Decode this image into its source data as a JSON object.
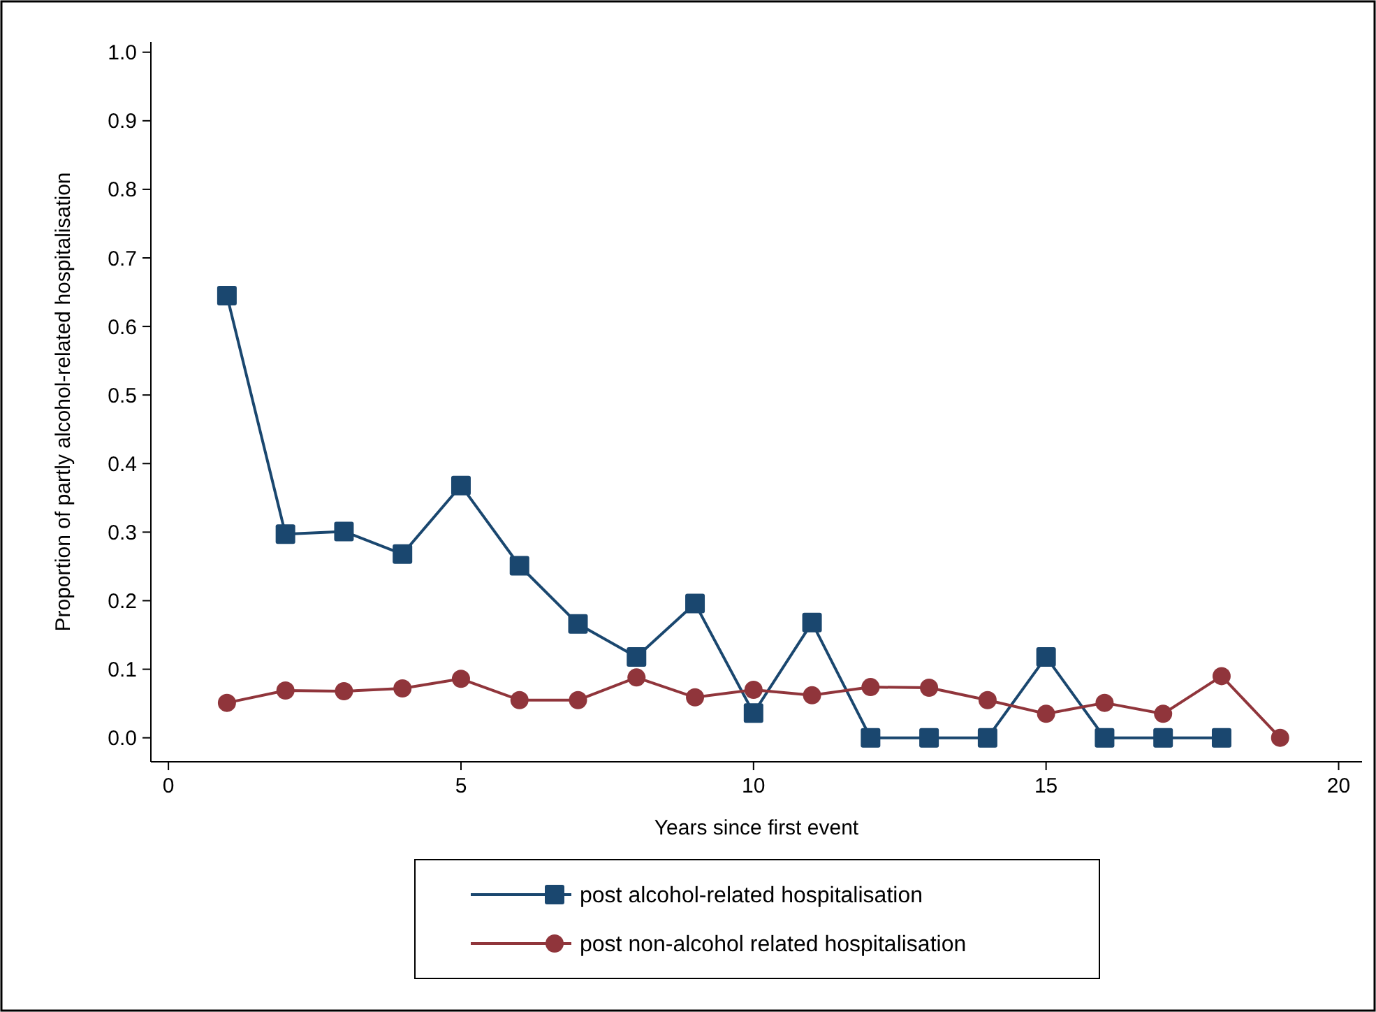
{
  "chart_data": {
    "type": "line",
    "xlabel": "Years since first event",
    "ylabel": "Proportion of partly alcohol-related hospitalisation",
    "x": [
      1,
      2,
      3,
      4,
      5,
      6,
      7,
      8,
      9,
      10,
      11,
      12,
      13,
      14,
      15,
      16,
      17,
      18,
      19
    ],
    "series": [
      {
        "name": "post alcohol-related hospitalisation",
        "color": "#1a476f",
        "marker": "square",
        "values": [
          0.645,
          0.297,
          0.301,
          0.268,
          0.368,
          0.251,
          0.166,
          0.118,
          0.196,
          0.036,
          0.168,
          0,
          0,
          0,
          0.118,
          0,
          0,
          0,
          null
        ]
      },
      {
        "name": "post non-alcohol related hospitalisation",
        "color": "#90353b",
        "marker": "circle",
        "values": [
          0.051,
          0.069,
          0.068,
          0.072,
          0.086,
          0.055,
          0.055,
          0.088,
          0.059,
          0.07,
          0.062,
          0.074,
          0.073,
          0.055,
          0.035,
          0.051,
          0.035,
          0.09,
          0
        ]
      }
    ],
    "xlim": [
      -0.3,
      20.4
    ],
    "xticks": [
      0,
      5,
      10,
      15,
      20
    ],
    "ylim": [
      -0.035,
      1.015
    ],
    "yticks": [
      {
        "value": 0,
        "label": "0.0"
      },
      {
        "value": 0.1,
        "label": "0.1"
      },
      {
        "value": 0.2,
        "label": "0.2"
      },
      {
        "value": 0.3,
        "label": "0.3"
      },
      {
        "value": 0.4,
        "label": "0.4"
      },
      {
        "value": 0.5,
        "label": "0.5"
      },
      {
        "value": 0.6,
        "label": "0.6"
      },
      {
        "value": 0.7,
        "label": "0.7"
      },
      {
        "value": 0.8,
        "label": "0.8"
      },
      {
        "value": 0.9,
        "label": "0.9"
      },
      {
        "value": 1,
        "label": "1.0"
      }
    ],
    "grid": false,
    "legend": "bottom",
    "line_style": "solid"
  }
}
